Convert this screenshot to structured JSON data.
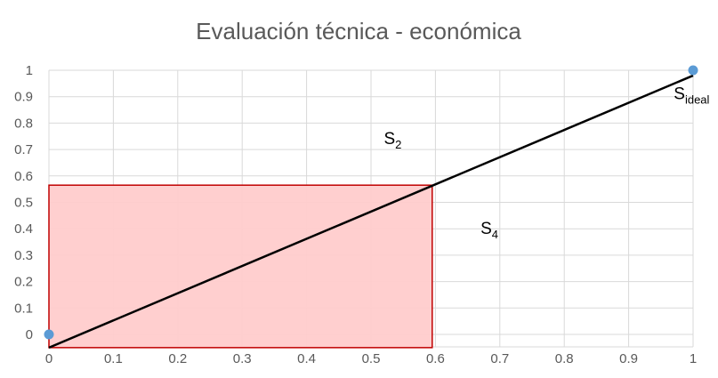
{
  "chart_data": {
    "type": "scatter",
    "title": "Evaluación técnica - económica",
    "xlabel": "",
    "ylabel": "",
    "xlim": [
      0,
      1
    ],
    "ylim": [
      0,
      1
    ],
    "grid": true,
    "x_ticks": [
      "0",
      "0.1",
      "0.2",
      "0.3",
      "0.4",
      "0.5",
      "0.6",
      "0.7",
      "0.8",
      "0.9",
      "1"
    ],
    "y_ticks": [
      "0",
      "0.1",
      "0.2",
      "0.3",
      "0.4",
      "0.5",
      "0.6",
      "0.7",
      "0.8",
      "0.9",
      "1"
    ],
    "points": [
      {
        "x": 0,
        "y": 0
      },
      {
        "x": 1,
        "y": 1
      }
    ],
    "line": {
      "from": {
        "x": 0,
        "y": -0.05
      },
      "to": {
        "x": 1,
        "y": 0.98
      }
    },
    "region": {
      "x": [
        0,
        0.595
      ],
      "y": [
        -0.05,
        0.565
      ]
    },
    "annotations": [
      {
        "text": "S",
        "sub": "2",
        "x": 0.52,
        "y": 0.72
      },
      {
        "text": "S",
        "sub": "4",
        "x": 0.67,
        "y": 0.38
      },
      {
        "text": "S",
        "sub": "ideal",
        "x": 0.97,
        "y": 0.89
      }
    ],
    "colors": {
      "point": "#5B9BD5",
      "line": "#000000",
      "region_fill": "#FFCCCC",
      "region_stroke": "#C00000",
      "grid": "#D9D9D9",
      "text": "#595959"
    }
  }
}
